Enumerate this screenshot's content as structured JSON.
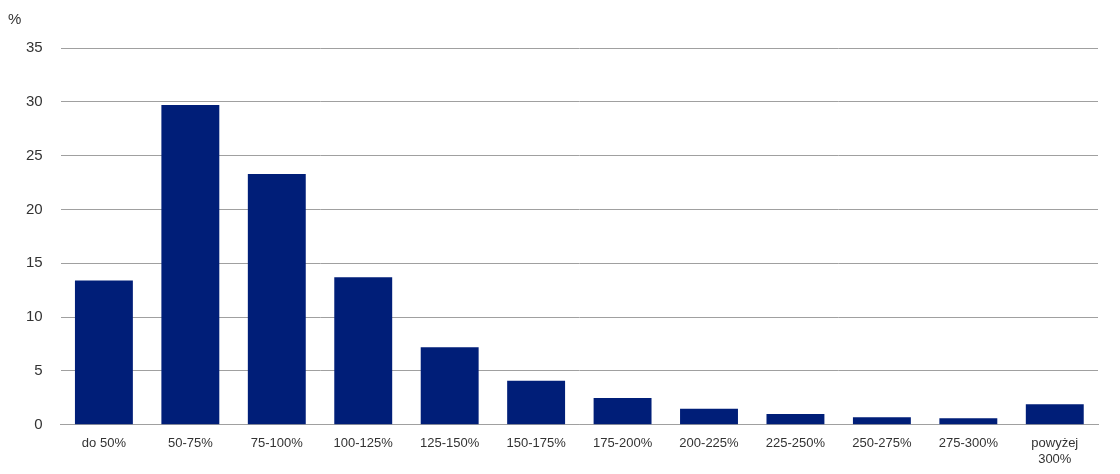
{
  "chart_data": {
    "type": "bar",
    "y_label": "%",
    "categories": [
      "do 50%",
      "50-75%",
      "75-100%",
      "100-125%",
      "125-150%",
      "150-175%",
      "175-200%",
      "200-225%",
      "225-250%",
      "250-275%",
      "275-300%",
      "powyżej 300%"
    ],
    "values": [
      13.4,
      29.7,
      23.3,
      13.7,
      7.2,
      4.1,
      2.5,
      1.5,
      1.0,
      0.7,
      0.6,
      1.9
    ],
    "color": "#001e78",
    "ylim": [
      0,
      35
    ],
    "yticks": [
      0,
      5,
      10,
      15,
      20,
      25,
      30,
      35
    ],
    "grid": true
  }
}
